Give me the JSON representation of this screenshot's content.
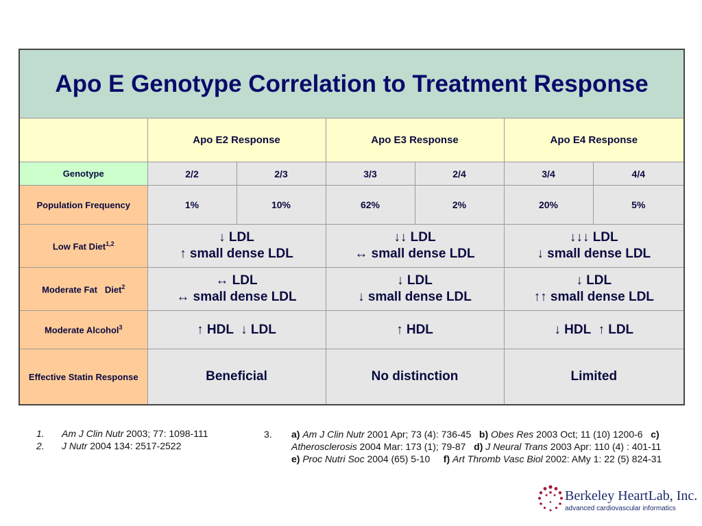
{
  "title": "Apo E Genotype Correlation to Treatment Response",
  "headers": [
    "Apo E2 Response",
    "Apo E3 Response",
    "Apo E4 Response"
  ],
  "genotype": {
    "label": "Genotype",
    "values": [
      "2/2",
      "2/3",
      "3/3",
      "2/4",
      "3/4",
      "4/4"
    ]
  },
  "population": {
    "label": "Population Frequency",
    "values": [
      "1%",
      "10%",
      "62%",
      "2%",
      "20%",
      "5%"
    ]
  },
  "rows": [
    {
      "label": "Low Fat Diet",
      "sup": "1,2",
      "cells": [
        [
          "↓ LDL",
          "↑ small dense LDL"
        ],
        [
          "↓↓ LDL",
          "↔ small dense LDL"
        ],
        [
          "↓↓↓ LDL",
          "↓ small dense LDL"
        ]
      ]
    },
    {
      "label": "Moderate Fat   Diet",
      "sup": "2",
      "cells": [
        [
          "↔ LDL",
          "↔ small dense LDL"
        ],
        [
          "↓ LDL",
          "↓ small dense LDL"
        ],
        [
          "↓ LDL",
          "↑↑ small dense LDL"
        ]
      ]
    },
    {
      "label": "Moderate Alcohol",
      "sup": "3",
      "cells": [
        [
          "↑ HDL  ↓ LDL"
        ],
        [
          "↑ HDL"
        ],
        [
          "↓ HDL  ↑ LDL"
        ]
      ]
    },
    {
      "label": "Effective Statin Response",
      "sup": "",
      "cells": [
        [
          "Beneficial"
        ],
        [
          "No distinction"
        ],
        [
          "Limited"
        ]
      ]
    }
  ],
  "refs_left": [
    {
      "num": "1.",
      "journal": "Am J Clin Nutr",
      "rest": " 2003; 77: 1098-111"
    },
    {
      "num": "2.",
      "journal": "J Nutr",
      "rest": " 2004 134: 2517-2522"
    }
  ],
  "ref3": {
    "num": "3.",
    "a_label": "a)",
    "a_journal": "Am J Clin Nutr",
    "a_rest": " 2001 Apr; 73 (4): 736-45",
    "b_label": "b)",
    "b_journal": "Obes Res",
    "b_rest": " 2003 Oct; 11 (10) 1200-6",
    "c_label": "c)",
    "c_journal": "Atherosclerosis",
    "c_rest": " 2004 Mar: 173 (1); 79-87",
    "d_label": "d)",
    "d_journal": "J Neural Trans",
    "d_rest": " 2003 Apr: 110 (4) : 401-11",
    "e_label": "e)",
    "e_journal": "Proc Nutri Soc",
    "e_rest": " 2004 (65) 5-10",
    "f_label": "f)",
    "f_journal": "Art Thromb Vasc Biol",
    "f_rest": "  2002:  AMy 1: 22 (5) 824-31"
  },
  "logo": {
    "name": "Berkeley HeartLab, Inc.",
    "tagline": "advanced cardiovascular informatics"
  }
}
